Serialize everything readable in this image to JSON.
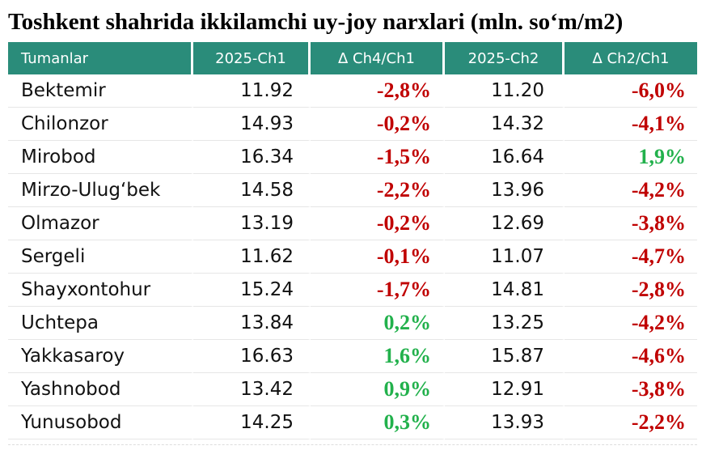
{
  "title": "Toshkent shahrida ikkilamchi uy-joy narxlari (mln. so‘m/m2)",
  "colors": {
    "header_bg": "#2a8c7a",
    "header_text": "#ffffff",
    "negative": "#c00000",
    "positive": "#22b14c"
  },
  "table": {
    "headers": [
      "Tumanlar",
      "2025-Ch1",
      "Δ Ch4/Ch1",
      "2025-Ch2",
      "Δ Ch2/Ch1"
    ],
    "rows": [
      {
        "district": "Bektemir",
        "ch1": "11.92",
        "d1": "-2,8%",
        "d1_sign": "neg",
        "ch2": "11.20",
        "d2": "-6,0%",
        "d2_sign": "neg"
      },
      {
        "district": "Chilonzor",
        "ch1": "14.93",
        "d1": "-0,2%",
        "d1_sign": "neg",
        "ch2": "14.32",
        "d2": "-4,1%",
        "d2_sign": "neg"
      },
      {
        "district": "Mirobod",
        "ch1": "16.34",
        "d1": "-1,5%",
        "d1_sign": "neg",
        "ch2": "16.64",
        "d2": "1,9%",
        "d2_sign": "pos"
      },
      {
        "district": "Mirzo-Ulug‘bek",
        "ch1": "14.58",
        "d1": "-2,2%",
        "d1_sign": "neg",
        "ch2": "13.96",
        "d2": "-4,2%",
        "d2_sign": "neg"
      },
      {
        "district": "Olmazor",
        "ch1": "13.19",
        "d1": "-0,2%",
        "d1_sign": "neg",
        "ch2": "12.69",
        "d2": "-3,8%",
        "d2_sign": "neg"
      },
      {
        "district": "Sergeli",
        "ch1": "11.62",
        "d1": "-0,1%",
        "d1_sign": "neg",
        "ch2": "11.07",
        "d2": "-4,7%",
        "d2_sign": "neg"
      },
      {
        "district": "Shayxontohur",
        "ch1": "15.24",
        "d1": "-1,7%",
        "d1_sign": "neg",
        "ch2": "14.81",
        "d2": "-2,8%",
        "d2_sign": "neg"
      },
      {
        "district": "Uchtepa",
        "ch1": "13.84",
        "d1": "0,2%",
        "d1_sign": "pos",
        "ch2": "13.25",
        "d2": "-4,2%",
        "d2_sign": "neg"
      },
      {
        "district": "Yakkasaroy",
        "ch1": "16.63",
        "d1": "1,6%",
        "d1_sign": "pos",
        "ch2": "15.87",
        "d2": "-4,6%",
        "d2_sign": "neg"
      },
      {
        "district": "Yashnobod",
        "ch1": "13.42",
        "d1": "0,9%",
        "d1_sign": "pos",
        "ch2": "12.91",
        "d2": "-3,8%",
        "d2_sign": "neg"
      },
      {
        "district": "Yunusobod",
        "ch1": "14.25",
        "d1": "0,3%",
        "d1_sign": "pos",
        "ch2": "13.93",
        "d2": "-2,2%",
        "d2_sign": "neg"
      }
    ]
  }
}
